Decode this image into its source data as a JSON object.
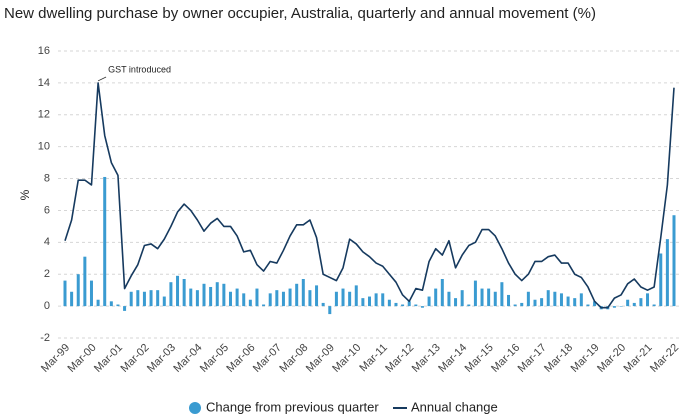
{
  "chart_data": {
    "type": "combo",
    "title": "New dwelling purchase by owner occupier, Australia, quarterly and annual movement (%)",
    "y_label": "%",
    "annotation": {
      "text": "GST introduced",
      "index": 5
    },
    "categories": [
      "Mar-99",
      null,
      null,
      null,
      "Mar-00",
      null,
      null,
      null,
      "Mar-01",
      null,
      null,
      null,
      "Mar-02",
      null,
      null,
      null,
      "Mar-03",
      null,
      null,
      null,
      "Mar-04",
      null,
      null,
      null,
      "Mar-05",
      null,
      null,
      null,
      "Mar-06",
      null,
      null,
      null,
      "Mar-07",
      null,
      null,
      null,
      "Mar-08",
      null,
      null,
      null,
      "Mar-09",
      null,
      null,
      null,
      "Mar-10",
      null,
      null,
      null,
      "Mar-11",
      null,
      null,
      null,
      "Mar-12",
      null,
      null,
      null,
      "Mar-13",
      null,
      null,
      null,
      "Mar-14",
      null,
      null,
      null,
      "Mar-15",
      null,
      null,
      null,
      "Mar-16",
      null,
      null,
      null,
      "Mar-17",
      null,
      null,
      null,
      "Mar-18",
      null,
      null,
      null,
      "Mar-19",
      null,
      null,
      null,
      "Mar-20",
      null,
      null,
      null,
      "Mar-21",
      null,
      null,
      null,
      "Mar-22"
    ],
    "series": [
      {
        "name": "Change from previous quarter",
        "type": "bar",
        "color": "#3a9bd1",
        "values": [
          1.6,
          0.9,
          2.0,
          3.1,
          1.6,
          0.4,
          8.1,
          0.3,
          0.1,
          -0.3,
          0.9,
          1.0,
          0.9,
          1.0,
          1.0,
          0.6,
          1.5,
          1.9,
          1.7,
          1.1,
          1.0,
          1.4,
          1.2,
          1.5,
          1.4,
          0.9,
          1.1,
          0.8,
          0.4,
          1.1,
          0.1,
          0.8,
          1.0,
          0.9,
          1.1,
          1.4,
          1.7,
          1.0,
          1.3,
          0.2,
          -0.5,
          0.9,
          1.1,
          0.9,
          1.3,
          0.5,
          0.6,
          0.8,
          0.8,
          0.4,
          0.2,
          0.1,
          0.3,
          0.1,
          -0.1,
          0.6,
          1.1,
          1.7,
          0.9,
          0.5,
          1.0,
          0.1,
          1.6,
          1.1,
          1.1,
          0.9,
          1.5,
          0.7,
          0.1,
          0.2,
          0.9,
          0.4,
          0.5,
          1.0,
          0.9,
          0.8,
          0.6,
          0.5,
          0.8,
          0.1,
          0.3,
          -0.2,
          -0.2,
          -0.1,
          0.0,
          0.4,
          0.2,
          0.5,
          0.8,
          0.1,
          3.3,
          4.2,
          5.7
        ]
      },
      {
        "name": "Annual change",
        "type": "line",
        "color": "#163a5f",
        "values": [
          4.1,
          5.4,
          7.9,
          7.9,
          7.6,
          14.0,
          10.7,
          9.0,
          8.2,
          1.1,
          1.9,
          2.6,
          3.8,
          3.9,
          3.6,
          4.2,
          5.0,
          5.9,
          6.4,
          6.0,
          5.4,
          4.7,
          5.2,
          5.5,
          5.0,
          5.0,
          4.4,
          3.4,
          3.5,
          2.6,
          2.2,
          2.8,
          2.7,
          3.5,
          4.4,
          5.1,
          5.1,
          5.4,
          4.3,
          2.0,
          1.8,
          1.6,
          2.4,
          4.2,
          3.9,
          3.4,
          3.1,
          2.7,
          2.5,
          2.0,
          1.5,
          0.7,
          0.3,
          1.1,
          1.0,
          2.8,
          3.6,
          3.2,
          4.1,
          2.4,
          3.2,
          3.8,
          4.0,
          4.8,
          4.8,
          4.4,
          3.6,
          2.7,
          2.0,
          1.6,
          2.0,
          2.8,
          2.8,
          3.1,
          3.2,
          2.7,
          2.7,
          2.0,
          1.8,
          1.2,
          0.3,
          -0.1,
          -0.1,
          0.5,
          0.7,
          1.4,
          1.7,
          1.2,
          1.0,
          1.2,
          4.3,
          7.6,
          13.7
        ]
      }
    ],
    "ylim": [
      -2,
      16
    ],
    "yticks": [
      -2,
      0,
      2,
      4,
      6,
      8,
      10,
      12,
      14,
      16
    ],
    "grid": true
  }
}
